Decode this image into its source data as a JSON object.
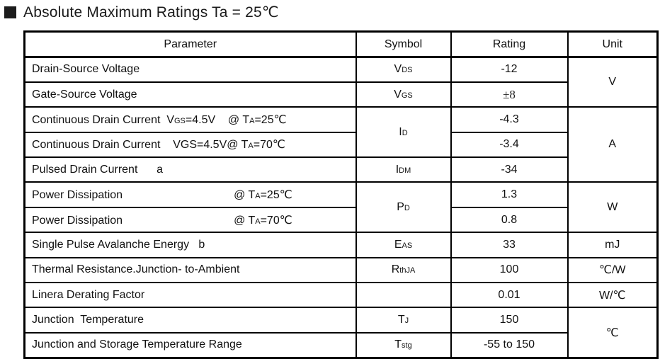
{
  "title": {
    "marker": "black-square",
    "text": "Absolute Maximum Ratings Ta = 25℃"
  },
  "table": {
    "columns": [
      "Parameter",
      "Symbol",
      "Rating",
      "Unit"
    ],
    "rows": [
      [
        {
          "s": [
            {
              "t": "Drain-Source Voltage"
            }
          ]
        },
        {
          "s": [
            {
              "t": "V"
            },
            {
              "t": "DS",
              "sub": true
            }
          ]
        },
        {
          "s": [
            {
              "t": "-12"
            }
          ]
        },
        {
          "s": [
            {
              "t": "V"
            }
          ],
          "rowspan": 2
        }
      ],
      [
        {
          "s": [
            {
              "t": "Gate-Source Voltage"
            }
          ]
        },
        {
          "s": [
            {
              "t": "V"
            },
            {
              "t": "GS",
              "sub": true
            }
          ]
        },
        {
          "s": [
            {
              "t": "±8",
              "serif": true
            }
          ]
        },
        null
      ],
      [
        {
          "s": [
            {
              "t": "Continuous Drain Current  V"
            },
            {
              "t": "GS",
              "sub": true
            },
            {
              "t": "=4.5V    @ T"
            },
            {
              "t": "A",
              "sub": true
            },
            {
              "t": "=25℃"
            }
          ]
        },
        {
          "s": [
            {
              "t": "I"
            },
            {
              "t": "D",
              "sub": true
            }
          ],
          "rowspan": 2
        },
        {
          "s": [
            {
              "t": "-4.3"
            }
          ]
        },
        {
          "s": [
            {
              "t": "A"
            }
          ],
          "rowspan": 3
        }
      ],
      [
        {
          "s": [
            {
              "t": "Continuous Drain Current    VGS=4.5V@ T"
            },
            {
              "t": "A",
              "sub": true
            },
            {
              "t": "=70℃"
            }
          ]
        },
        null,
        {
          "s": [
            {
              "t": "-3.4"
            }
          ]
        },
        null
      ],
      [
        {
          "s": [
            {
              "t": "Pulsed Drain Current      a"
            }
          ]
        },
        {
          "s": [
            {
              "t": "I"
            },
            {
              "t": "DM",
              "sub": true
            }
          ]
        },
        {
          "s": [
            {
              "t": "-34"
            }
          ]
        },
        null
      ],
      [
        {
          "s": [
            {
              "t": "Power Dissipation"
            },
            {
              "gap": 157
            },
            {
              "t": "@ T"
            },
            {
              "t": "A",
              "sub": true
            },
            {
              "t": "=25℃"
            }
          ]
        },
        {
          "s": [
            {
              "t": "P"
            },
            {
              "t": "D",
              "sub": true
            }
          ],
          "rowspan": 2
        },
        {
          "s": [
            {
              "t": "1.3"
            }
          ]
        },
        {
          "s": [
            {
              "t": "W"
            }
          ],
          "rowspan": 2
        }
      ],
      [
        {
          "s": [
            {
              "t": "Power Dissipation"
            },
            {
              "gap": 157
            },
            {
              "t": "@ T"
            },
            {
              "t": "A",
              "sub": true
            },
            {
              "t": "=70℃"
            }
          ]
        },
        null,
        {
          "s": [
            {
              "t": "0.8"
            }
          ]
        },
        null
      ],
      [
        {
          "s": [
            {
              "t": "Single Pulse Avalanche Energy   b"
            }
          ]
        },
        {
          "s": [
            {
              "t": "E"
            },
            {
              "t": "AS",
              "sub": true
            }
          ]
        },
        {
          "s": [
            {
              "t": "33"
            }
          ]
        },
        {
          "s": [
            {
              "t": "mJ"
            }
          ]
        }
      ],
      [
        {
          "s": [
            {
              "t": "Thermal Resistance.Junction- to-Ambient"
            }
          ]
        },
        {
          "s": [
            {
              "t": "R"
            },
            {
              "t": "thJA",
              "sub": true
            }
          ]
        },
        {
          "s": [
            {
              "t": "100"
            }
          ]
        },
        {
          "s": [
            {
              "t": "℃/W"
            }
          ]
        }
      ],
      [
        {
          "s": [
            {
              "t": "Linera Derating Factor"
            }
          ]
        },
        {
          "s": []
        },
        {
          "s": [
            {
              "t": "0.01"
            }
          ]
        },
        {
          "s": [
            {
              "t": "W/℃"
            }
          ]
        }
      ],
      [
        {
          "s": [
            {
              "t": "Junction  Temperature"
            }
          ]
        },
        {
          "s": [
            {
              "t": "T"
            },
            {
              "t": "J",
              "sub": true
            }
          ]
        },
        {
          "s": [
            {
              "t": "150"
            }
          ]
        },
        {
          "s": [
            {
              "t": "℃"
            }
          ],
          "rowspan": 2
        }
      ],
      [
        {
          "s": [
            {
              "t": "Junction and Storage Temperature Range"
            }
          ]
        },
        {
          "s": [
            {
              "t": "T"
            },
            {
              "t": "stg",
              "sub": true
            }
          ]
        },
        {
          "s": [
            {
              "t": "-55 to 150"
            }
          ]
        },
        null
      ]
    ]
  }
}
